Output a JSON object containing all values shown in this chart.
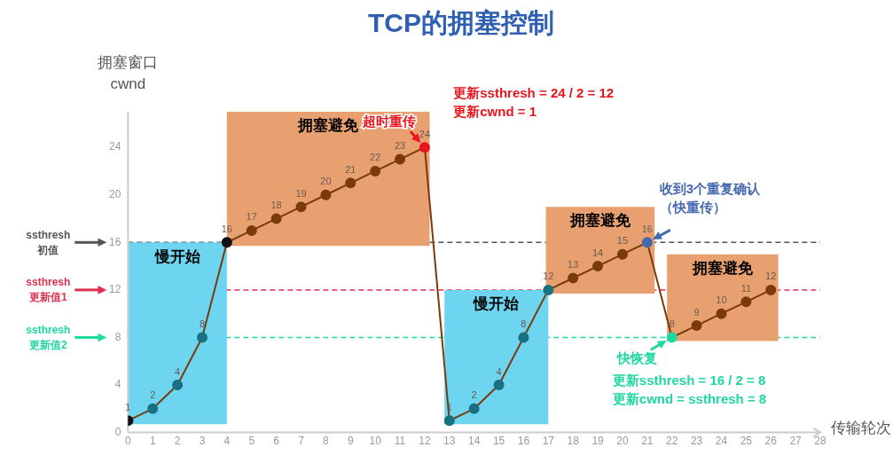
{
  "chart_data": {
    "type": "line",
    "title": "TCP的拥塞控制",
    "xlabel": "传输轮次",
    "ylabel": "拥塞窗口\ncwnd",
    "x": [
      0,
      1,
      2,
      3,
      4,
      5,
      6,
      7,
      8,
      9,
      10,
      11,
      12,
      13,
      14,
      15,
      16,
      17,
      18,
      19,
      20,
      21,
      22,
      23,
      24,
      25,
      26
    ],
    "series": [
      {
        "color": "#7a3a0c",
        "values": [
          1,
          2,
          4,
          8,
          16,
          17,
          18,
          19,
          20,
          21,
          22,
          23,
          24,
          1,
          2,
          4,
          8,
          12,
          13,
          14,
          15,
          16,
          8,
          9,
          10,
          11,
          12
        ],
        "colors": [
          "#111111",
          "#1a6f80",
          "#1a6f80",
          "#1a6f80",
          "#111111",
          "#7a3a0c",
          "#7a3a0c",
          "#7a3a0c",
          "#7a3a0c",
          "#7a3a0c",
          "#7a3a0c",
          "#7a3a0c",
          "#e8141e",
          "#1a6f80",
          "#1a6f80",
          "#1a6f80",
          "#1a6f80",
          "#1a6f80",
          "#7a3a0c",
          "#7a3a0c",
          "#7a3a0c",
          "#4468b0",
          "#1ed8a0",
          "#7a3a0c",
          "#7a3a0c",
          "#7a3a0c",
          "#7a3a0c"
        ]
      }
    ],
    "xlim": [
      0,
      28
    ],
    "xticks": [
      0,
      1,
      2,
      3,
      4,
      5,
      6,
      7,
      8,
      9,
      10,
      11,
      12,
      13,
      14,
      15,
      16,
      17,
      18,
      19,
      20,
      21,
      22,
      23,
      24,
      25,
      26,
      27,
      28
    ],
    "ylim": [
      0,
      27
    ],
    "yticks": [
      0,
      4,
      8,
      12,
      16,
      20,
      24
    ],
    "ref_lines": [
      {
        "axis": "y",
        "value": 16,
        "label": "ssthresh\n初值",
        "color": "#555555",
        "line_style": "dashed"
      },
      {
        "axis": "y",
        "value": 12,
        "label": "ssthresh\n更新值1",
        "color": "#e03050",
        "line_style": "dashed"
      },
      {
        "axis": "y",
        "value": 8,
        "label": "ssthresh\n更新值2",
        "color": "#1ed8a0",
        "line_style": "dashed"
      }
    ],
    "bands": [
      {
        "axis": "x",
        "from": 0,
        "to": 4,
        "label": "慢开始",
        "color": "#6dd5ef"
      },
      {
        "axis": "x",
        "from": 4,
        "to": 12.2,
        "label": "拥塞避免",
        "color": "#e8a070"
      },
      {
        "axis": "x",
        "from": 12.8,
        "to": 17,
        "label": "慢开始",
        "color": "#6dd5ef"
      },
      {
        "axis": "x",
        "from": 16.9,
        "to": 21.3,
        "label": "拥塞避免",
        "color": "#e8a070"
      },
      {
        "axis": "x",
        "from": 21.8,
        "to": 26.3,
        "label": "拥塞避免",
        "color": "#e8a070"
      }
    ],
    "annotations": [
      {
        "text": "超时重传",
        "x": 12,
        "y": 24
      },
      "更新ssthresh = 24 / 2 = 12\n更新cwnd = 1",
      {
        "text": "收到3个重复确认（快重传）",
        "x": 21,
        "y": 16
      },
      {
        "text": "快恢复",
        "x": 22,
        "y": 8
      },
      "更新ssthresh = 16 / 2 = 8\n更新cwnd = ssthresh = 8"
    ],
    "data_labels": true,
    "marker": "circle",
    "line_style": "solid",
    "grid": false,
    "legend": false
  }
}
